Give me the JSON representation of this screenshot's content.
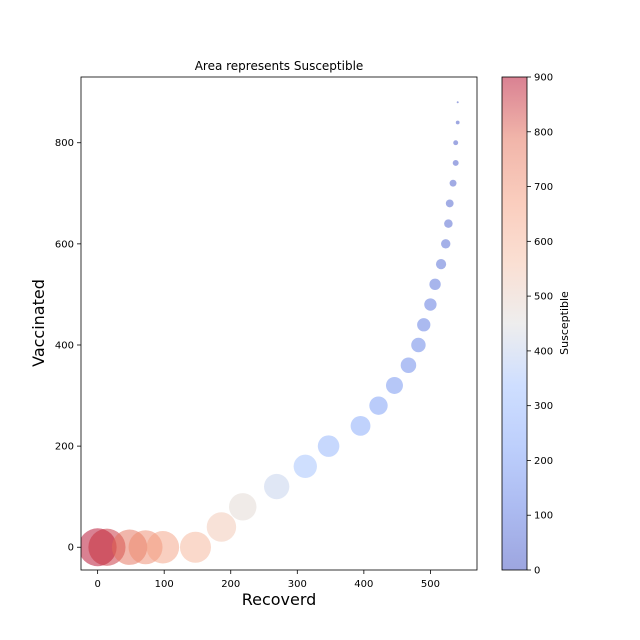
{
  "chart_data": {
    "type": "scatter",
    "title": "Area represents Susceptible",
    "xlabel": "Recoverd",
    "ylabel": "Vaccinated",
    "xlim": [
      -25,
      570
    ],
    "ylim": [
      -45,
      930
    ],
    "x_ticks": [
      0,
      100,
      200,
      300,
      400,
      500
    ],
    "y_ticks": [
      0,
      200,
      400,
      600,
      800
    ],
    "grid": false,
    "colormap": "coolwarm",
    "alpha": 0.5,
    "colorbar": {
      "label": "Susceptible",
      "range": [
        0,
        900
      ],
      "ticks": [
        0,
        100,
        200,
        300,
        400,
        500,
        600,
        700,
        800,
        900
      ]
    },
    "points": [
      {
        "x": 0,
        "y": 0,
        "susceptible": 900
      },
      {
        "x": 14,
        "y": 0,
        "susceptible": 860
      },
      {
        "x": 48,
        "y": 0,
        "susceptible": 780
      },
      {
        "x": 72,
        "y": 0,
        "susceptible": 720
      },
      {
        "x": 98,
        "y": 0,
        "susceptible": 660
      },
      {
        "x": 147,
        "y": 0,
        "susceptible": 600
      },
      {
        "x": 186,
        "y": 40,
        "susceptible": 540
      },
      {
        "x": 218,
        "y": 80,
        "susceptible": 470
      },
      {
        "x": 269,
        "y": 120,
        "susceptible": 400
      },
      {
        "x": 312,
        "y": 160,
        "susceptible": 340
      },
      {
        "x": 347,
        "y": 200,
        "susceptible": 290
      },
      {
        "x": 395,
        "y": 240,
        "susceptible": 245
      },
      {
        "x": 422,
        "y": 280,
        "susceptible": 210
      },
      {
        "x": 446,
        "y": 320,
        "susceptible": 180
      },
      {
        "x": 467,
        "y": 360,
        "susceptible": 150
      },
      {
        "x": 482,
        "y": 400,
        "susceptible": 130
      },
      {
        "x": 490,
        "y": 440,
        "susceptible": 110
      },
      {
        "x": 500,
        "y": 480,
        "susceptible": 95
      },
      {
        "x": 507,
        "y": 520,
        "susceptible": 80
      },
      {
        "x": 516,
        "y": 560,
        "susceptible": 65
      },
      {
        "x": 523,
        "y": 600,
        "susceptible": 55
      },
      {
        "x": 527,
        "y": 640,
        "susceptible": 45
      },
      {
        "x": 529,
        "y": 680,
        "susceptible": 38
      },
      {
        "x": 534,
        "y": 720,
        "susceptible": 30
      },
      {
        "x": 538,
        "y": 760,
        "susceptible": 22
      },
      {
        "x": 538,
        "y": 800,
        "susceptible": 15
      },
      {
        "x": 541,
        "y": 840,
        "susceptible": 9
      },
      {
        "x": 541,
        "y": 880,
        "susceptible": 2
      }
    ]
  }
}
